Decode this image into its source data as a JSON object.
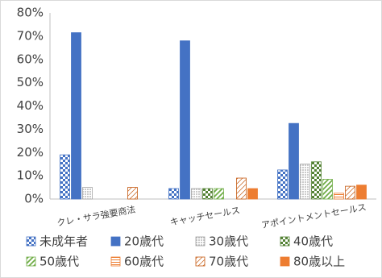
{
  "chart_data": {
    "type": "bar",
    "categories": [
      "クレ・サラ強要商法",
      "キャッチセールス",
      "アポイントメントセールス"
    ],
    "series": [
      {
        "name": "未成年者",
        "color": "#4472c4",
        "pattern": "checker",
        "values": [
          19,
          4.5,
          12.5
        ]
      },
      {
        "name": "20歳代",
        "color": "#4472c4",
        "pattern": "solid",
        "values": [
          71.5,
          68,
          32.5
        ]
      },
      {
        "name": "30歳代",
        "color": "#a5a5a5",
        "pattern": "dots",
        "values": [
          5,
          4.5,
          15
        ]
      },
      {
        "name": "40歳代",
        "color": "#548235",
        "pattern": "checker",
        "values": [
          0,
          4.5,
          16
        ]
      },
      {
        "name": "50歳代",
        "color": "#70ad47",
        "pattern": "diagonal",
        "values": [
          0,
          4.5,
          8.5
        ]
      },
      {
        "name": "60歳代",
        "color": "#ed7d31",
        "pattern": "horizontal",
        "values": [
          0,
          0,
          2.5
        ]
      },
      {
        "name": "70歳代",
        "color": "#c55a11",
        "pattern": "diagonal-thin",
        "values": [
          5,
          9,
          5.5
        ]
      },
      {
        "name": "80歳以上",
        "color": "#ed7d31",
        "pattern": "solid",
        "values": [
          0,
          4.5,
          6
        ]
      }
    ],
    "ylim": [
      0,
      80
    ],
    "yticks": [
      {
        "value": 0,
        "label": "0%"
      },
      {
        "value": 10,
        "label": "10%"
      },
      {
        "value": 20,
        "label": "20%"
      },
      {
        "value": 30,
        "label": "30%"
      },
      {
        "value": 40,
        "label": "40%"
      },
      {
        "value": 50,
        "label": "50%"
      },
      {
        "value": 60,
        "label": "60%"
      },
      {
        "value": 70,
        "label": "70%"
      },
      {
        "value": 80,
        "label": "80%"
      }
    ],
    "grid": false
  }
}
